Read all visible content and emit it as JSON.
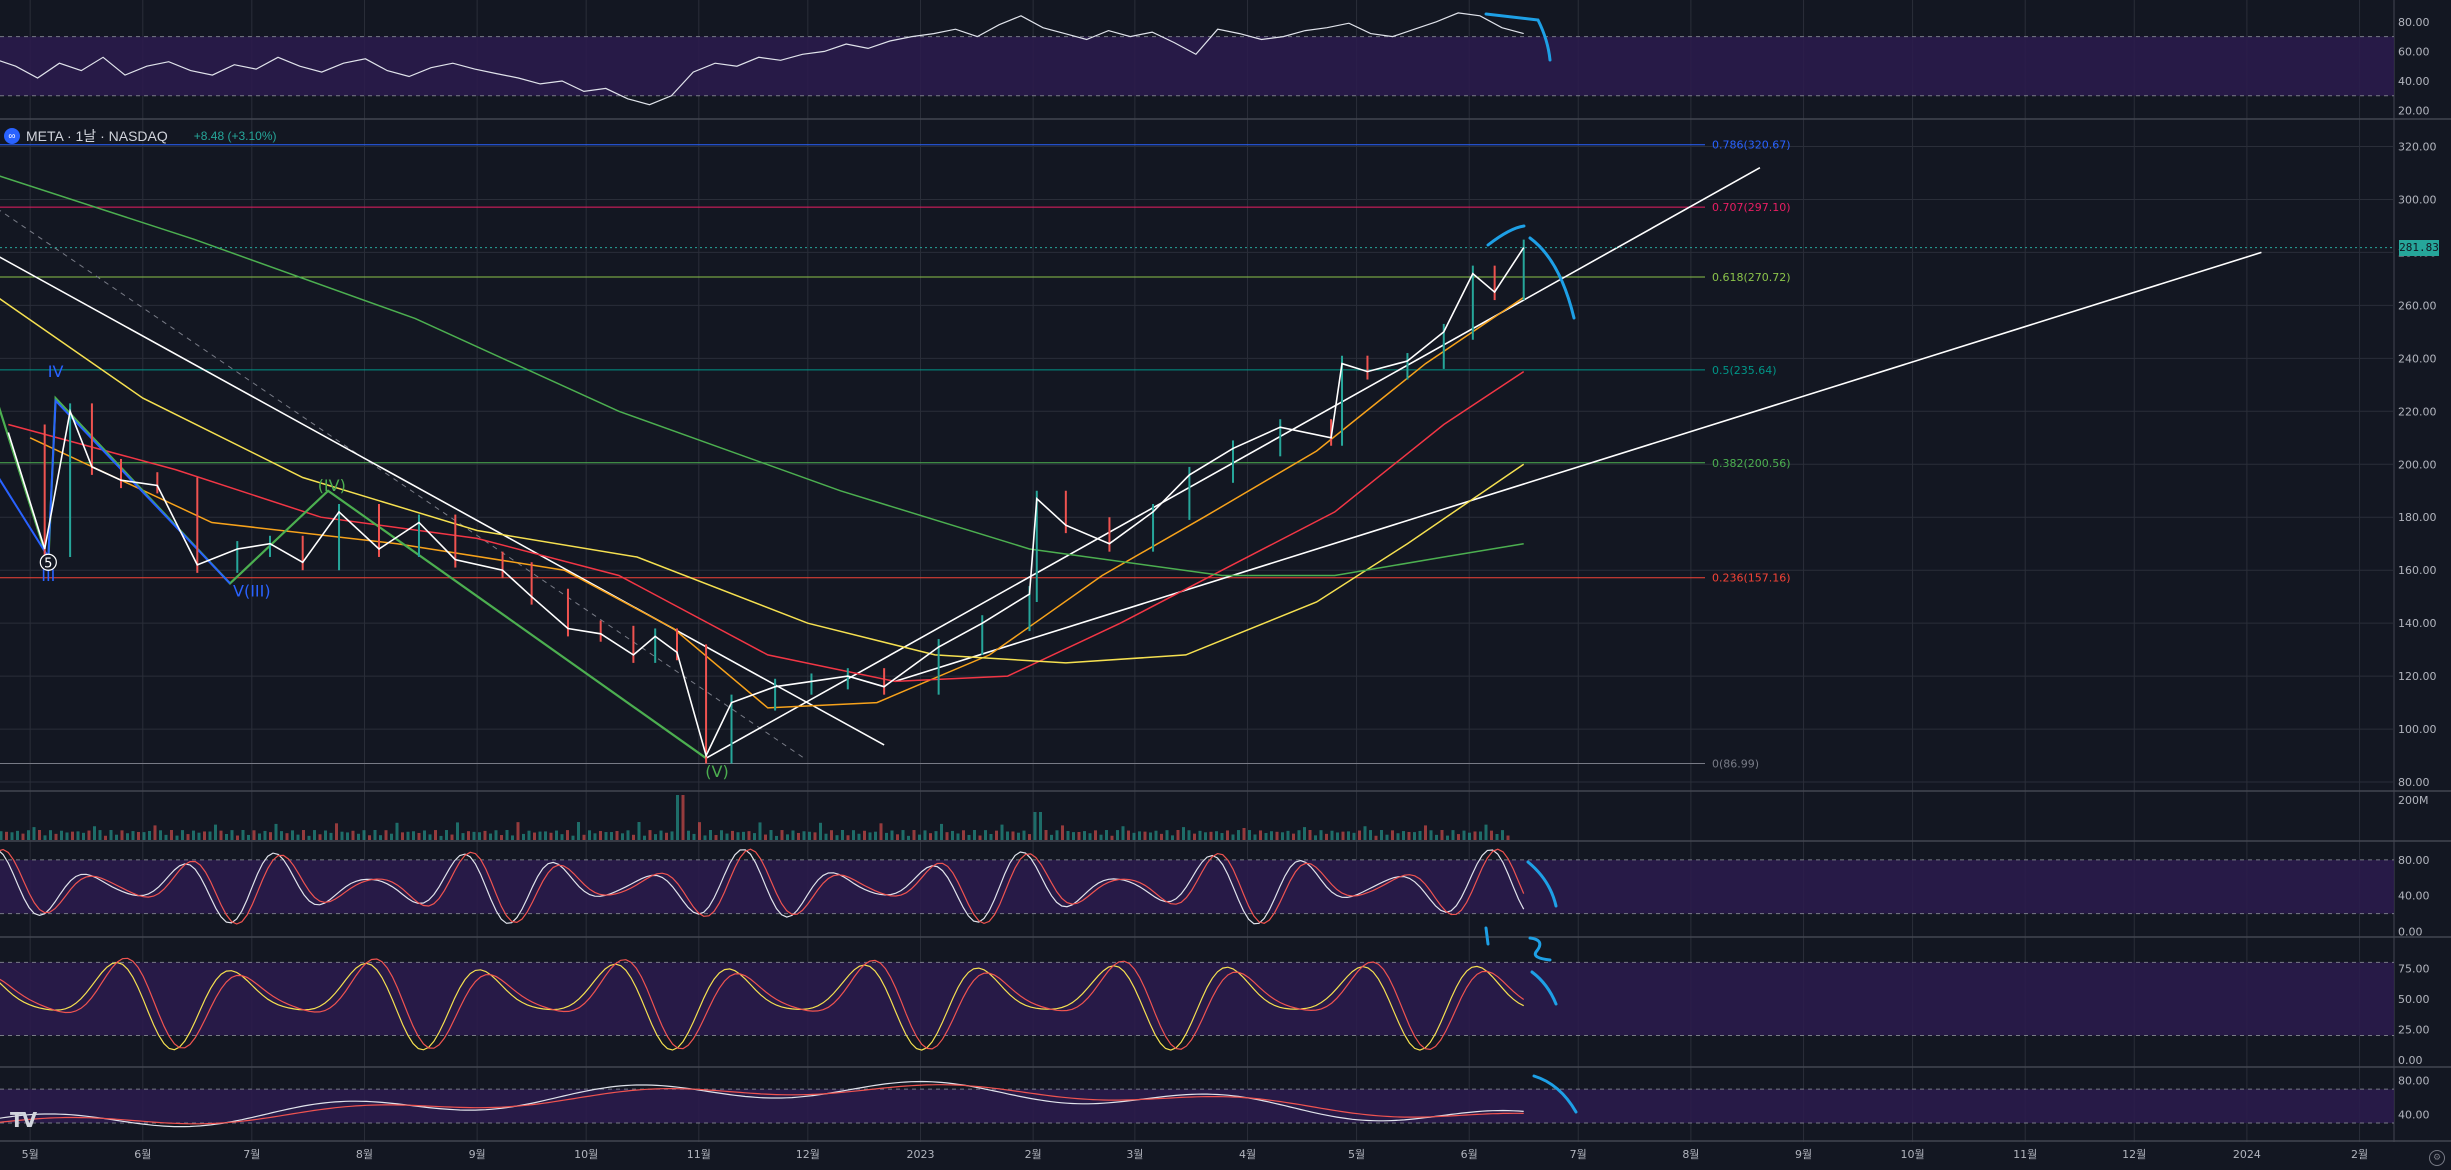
{
  "symbol": {
    "name": "META · 1날 · NASDAQ",
    "logo_label": "∞",
    "change": "+8.48 (+3.10%)",
    "last_price": "281.83",
    "last_price_value": 281.83
  },
  "colors": {
    "background": "#131722",
    "grid": "#2a2e39",
    "axis_text": "#b2b5be",
    "indicator_band": "#2b1b4e",
    "annotation_blue": "#1ea0e6"
  },
  "icons": {
    "tradingview_logo": "TV",
    "settings": "gear-icon"
  },
  "chart_data": {
    "type": "line",
    "title": "",
    "x_tick_labels": [
      "5월",
      "6월",
      "7월",
      "8월",
      "9월",
      "10월",
      "11월",
      "12월",
      "2023",
      "2월",
      "3월",
      "4월",
      "5월",
      "6월",
      "7월",
      "8월",
      "9월",
      "10월",
      "11월",
      "12월",
      "2024",
      "2월"
    ],
    "price": {
      "ylim": [
        77,
        330
      ],
      "y_ticks": [
        80,
        100,
        120,
        140,
        160,
        180,
        200,
        220,
        240,
        260,
        280,
        300,
        320
      ],
      "close_series": {
        "name": "",
        "x": [
          "2022-04-25",
          "2022-05-05",
          "2022-05-12",
          "2022-05-18",
          "2022-05-26",
          "2022-06-05",
          "2022-06-16",
          "2022-06-27",
          "2022-07-06",
          "2022-07-15",
          "2022-07-25",
          "2022-08-05",
          "2022-08-16",
          "2022-08-26",
          "2022-09-08",
          "2022-09-16",
          "2022-09-26",
          "2022-10-05",
          "2022-10-14",
          "2022-10-20",
          "2022-10-26",
          "2022-11-03",
          "2022-11-10",
          "2022-11-22",
          "2022-12-02",
          "2022-12-12",
          "2022-12-22",
          "2023-01-06",
          "2023-01-18",
          "2023-01-31",
          "2023-02-02",
          "2023-02-10",
          "2023-02-22",
          "2023-03-06",
          "2023-03-16",
          "2023-03-28",
          "2023-04-10",
          "2023-04-24",
          "2023-04-27",
          "2023-05-04",
          "2023-05-15",
          "2023-05-25",
          "2023-06-02",
          "2023-06-08",
          "2023-06-16"
        ],
        "values": [
          212,
          168,
          220,
          199,
          194,
          192,
          162,
          168,
          170,
          163,
          182,
          168,
          178,
          164,
          160,
          150,
          138,
          136,
          128,
          135,
          129,
          90,
          110,
          116,
          118,
          120,
          116,
          131,
          140,
          151,
          187,
          177,
          170,
          182,
          196,
          206,
          214,
          210,
          238,
          235,
          239,
          250,
          272,
          265,
          281.83
        ]
      },
      "moving_averages": [
        {
          "color": "#f7a21b",
          "x": [
            "2022-05-01",
            "2022-06-20",
            "2022-08-10",
            "2022-09-25",
            "2022-10-25",
            "2022-11-20",
            "2022-12-20",
            "2023-01-20",
            "2023-02-20",
            "2023-03-20",
            "2023-04-20",
            "2023-05-20",
            "2023-06-16"
          ],
          "values": [
            210,
            178,
            170,
            160,
            138,
            108,
            110,
            128,
            158,
            180,
            205,
            238,
            263
          ]
        },
        {
          "color": "#f23645",
          "x": [
            "2022-04-25",
            "2022-06-10",
            "2022-07-20",
            "2022-09-01",
            "2022-10-10",
            "2022-11-20",
            "2022-12-25",
            "2023-01-25",
            "2023-02-25",
            "2023-03-25",
            "2023-04-25",
            "2023-05-25",
            "2023-06-16"
          ],
          "values": [
            215,
            198,
            180,
            172,
            158,
            128,
            118,
            120,
            140,
            160,
            182,
            215,
            235
          ]
        },
        {
          "color": "#f5e050",
          "x": [
            "2022-04-20",
            "2022-06-01",
            "2022-07-15",
            "2022-09-01",
            "2022-10-15",
            "2022-12-01",
            "2023-01-05",
            "2023-02-10",
            "2023-03-15",
            "2023-04-20",
            "2023-05-15",
            "2023-06-16"
          ],
          "values": [
            265,
            225,
            195,
            175,
            165,
            140,
            128,
            125,
            128,
            148,
            170,
            200
          ]
        },
        {
          "color": "#4caf50",
          "x": [
            "2022-04-20",
            "2022-06-15",
            "2022-08-15",
            "2022-10-10",
            "2022-12-10",
            "2023-01-31",
            "2023-03-25",
            "2023-04-25",
            "2023-05-25",
            "2023-06-16"
          ],
          "values": [
            310,
            285,
            255,
            220,
            190,
            168,
            158,
            158,
            165,
            170
          ]
        }
      ],
      "fibonacci_levels": [
        {
          "label": "0.786(320.67)",
          "value": 320.67,
          "color": "#2962ff"
        },
        {
          "label": "0.707(297.10)",
          "value": 297.1,
          "color": "#e91e63"
        },
        {
          "label": "0.618(270.72)",
          "value": 270.72,
          "color": "#8bc34a"
        },
        {
          "label": "0.5(235.64)",
          "value": 235.64,
          "color": "#009688"
        },
        {
          "label": "0.382(200.56)",
          "value": 200.56,
          "color": "#4caf50"
        },
        {
          "label": "0.236(157.16)",
          "value": 157.16,
          "color": "#f44336"
        },
        {
          "label": "0(86.99)",
          "value": 86.99,
          "color": "#787b86"
        }
      ],
      "wave_labels": [
        {
          "text": "IV",
          "x": "2022-05-08",
          "y": 233,
          "color": "#2962ff"
        },
        {
          "text": "III",
          "x": "2022-05-06",
          "y": 156,
          "color": "#2962ff"
        },
        {
          "text": "5",
          "x": "2022-05-06",
          "y": 163,
          "color": "#ffffff"
        },
        {
          "text": "V(III)",
          "x": "2022-07-01",
          "y": 150,
          "color": "#2962ff"
        },
        {
          "text": "(IV)",
          "x": "2022-07-23",
          "y": 190,
          "color": "#4caf50"
        },
        {
          "text": "(V)",
          "x": "2022-11-06",
          "y": 82,
          "color": "#4caf50"
        }
      ]
    },
    "volume": {
      "label": "200M",
      "y_ticks": [
        "200M"
      ]
    },
    "rsi_top": {
      "ylim": [
        15,
        92
      ],
      "y_ticks": [
        20,
        40,
        60,
        80
      ],
      "band": [
        30,
        70
      ],
      "values": [
        48,
        55,
        50,
        42,
        52,
        47,
        56,
        44,
        50,
        53,
        47,
        44,
        51,
        48,
        56,
        50,
        46,
        52,
        55,
        47,
        43,
        49,
        52,
        48,
        45,
        42,
        38,
        40,
        33,
        35,
        28,
        24,
        30,
        46,
        52,
        50,
        56,
        54,
        58,
        60,
        65,
        62,
        67,
        70,
        72,
        75,
        70,
        78,
        84,
        76,
        72,
        68,
        74,
        70,
        73,
        66,
        58,
        75,
        72,
        68,
        70,
        74,
        76,
        79,
        72,
        70,
        75,
        80,
        86,
        84,
        76,
        72
      ]
    },
    "stoch_rsi": {
      "ylim": [
        -5,
        100
      ],
      "y_ticks": [
        0,
        40,
        80
      ],
      "band": [
        20,
        80
      ]
    },
    "stochastic": {
      "ylim": [
        -5,
        100
      ],
      "y_ticks": [
        0,
        25,
        50,
        75
      ],
      "band": [
        20,
        80
      ]
    },
    "rsi_bottom": {
      "ylim": [
        10,
        95
      ],
      "y_ticks": [
        40,
        80
      ],
      "band": [
        30,
        70
      ]
    }
  }
}
